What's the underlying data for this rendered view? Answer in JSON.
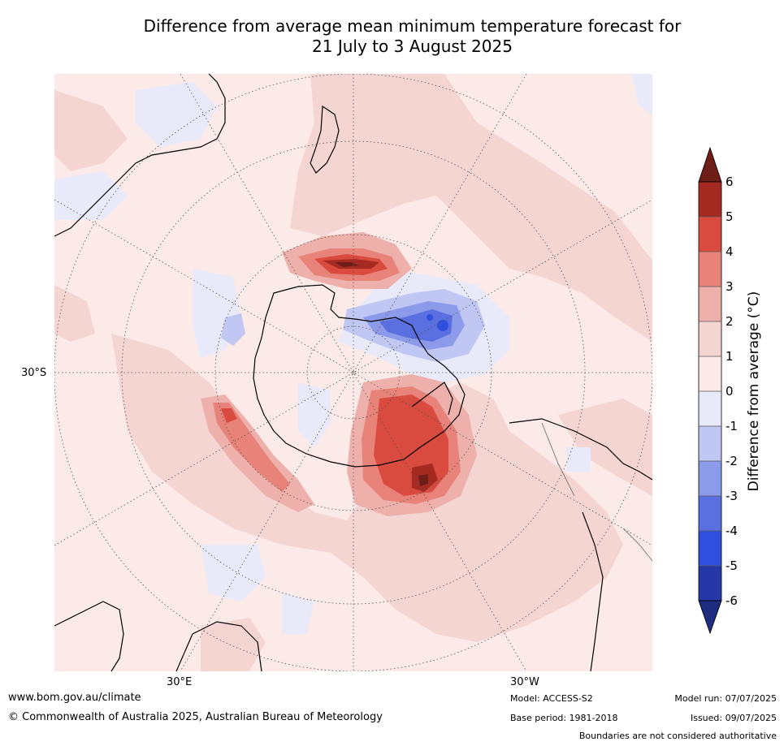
{
  "title": {
    "line1": "Difference from average mean minimum temperature forecast for",
    "line2": "21 July to 3 August 2025"
  },
  "map": {
    "projection": "south-polar-stereographic",
    "graticule_labels": {
      "lat_left": "30°S",
      "lon_bottom_left": "30°E",
      "lon_bottom_right": "30°W"
    },
    "colors": {
      "background_anomaly": "#fbe9e7",
      "land_outline": "#000000",
      "border_outline": "#808080"
    },
    "anomaly_regions": [
      "Warm anomaly over Antarctic Peninsula / Weddell Sea",
      "Warm anomaly south of New Zealand (Ross Sea)",
      "Cool anomaly over Amundsen / Bellingshausen Sea"
    ]
  },
  "colorbar": {
    "title": "Difference from average (°C)",
    "labels": [
      "6",
      "5",
      "4",
      "3",
      "2",
      "1",
      "0",
      "-1",
      "-2",
      "-3",
      "-4",
      "-5",
      "-6"
    ],
    "colors": {
      "above_6": "#6e1e17",
      "5_to_6": "#a52a22",
      "4_to_5": "#d94a3f",
      "3_to_4": "#e8837a",
      "2_to_3": "#eeb0aa",
      "1_to_2": "#f5d5d1",
      "0_to_1": "#fbeae7",
      "-1_to_0": "#e8eafa",
      "-2_to_-1": "#c0c7f2",
      "-3_to_-2": "#8c9be9",
      "-4_to_-3": "#5a70e0",
      "-5_to_-4": "#2f4fde",
      "-6_to_-5": "#2638a8",
      "below_-6": "#1f2d80"
    }
  },
  "footer": {
    "website": "www.bom.gov.au/climate",
    "copyright": "© Commonwealth of Australia 2025, Australian Bureau of Meteorology",
    "model": "Model: ACCESS-S2",
    "base_period": "Base period: 1981-2018",
    "model_run": "Model run: 07/07/2025",
    "issued": "Issued: 09/07/2025",
    "disclaimer": "Boundaries are not considered authoritative"
  }
}
